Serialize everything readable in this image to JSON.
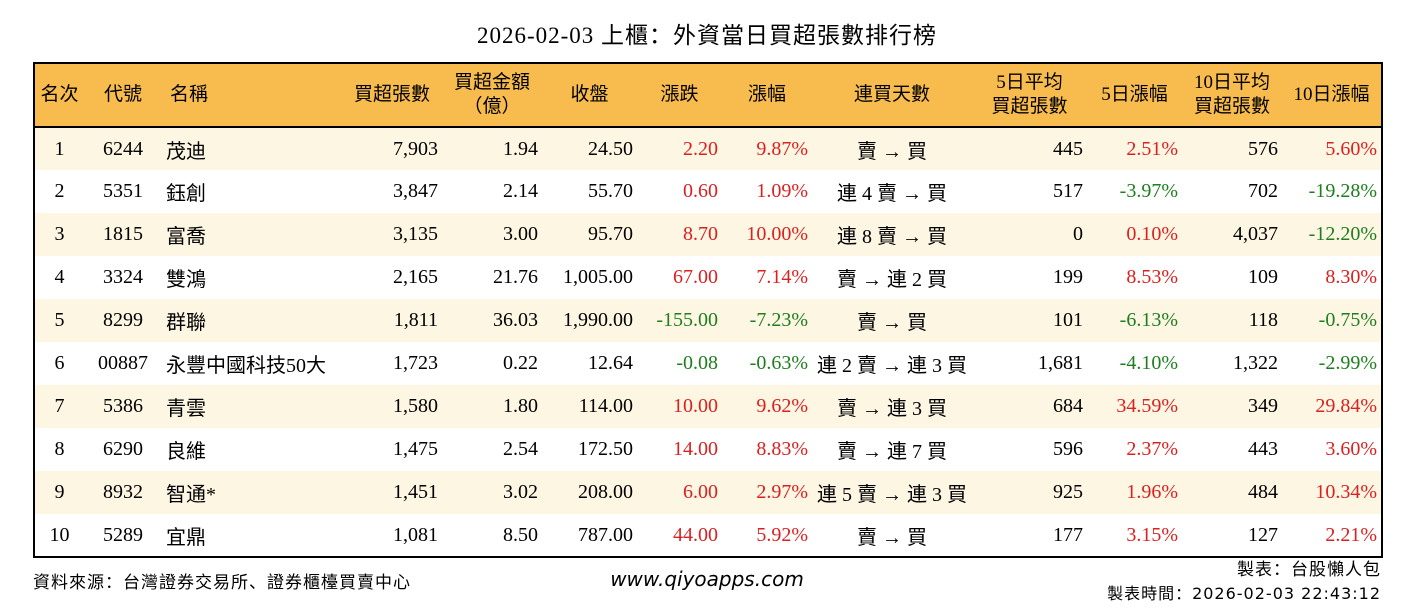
{
  "title": "2026-02-03 上櫃：外資當日買超張數排行榜",
  "colors": {
    "header_bg": "#F7BC4D",
    "row_alt_bg": "#FDF6E3",
    "up": "#D92121",
    "down": "#1E7E1E",
    "border": "#000000"
  },
  "chart_data": {
    "type": "table",
    "columns": [
      "名次",
      "代號",
      "名稱",
      "買超張數",
      "買超金額\n（億）",
      "收盤",
      "漲跌",
      "漲幅",
      "連買天數",
      "5日平均\n買超張數",
      "5日漲幅",
      "10日平均\n買超張數",
      "10日漲幅"
    ],
    "rows": [
      {
        "rank": "1",
        "code": "6244",
        "name": "茂迪",
        "net_buy": "7,903",
        "amount": "1.94",
        "close": "24.50",
        "change": "2.20",
        "change_c": "up",
        "pct": "9.87%",
        "pct_c": "up",
        "streak": "賣 → 買",
        "avg5": "445",
        "pct5": "2.51%",
        "pct5_c": "up",
        "avg10": "576",
        "pct10": "5.60%",
        "pct10_c": "up"
      },
      {
        "rank": "2",
        "code": "5351",
        "name": "鈺創",
        "net_buy": "3,847",
        "amount": "2.14",
        "close": "55.70",
        "change": "0.60",
        "change_c": "up",
        "pct": "1.09%",
        "pct_c": "up",
        "streak": "連 4 賣 → 買",
        "avg5": "517",
        "pct5": "-3.97%",
        "pct5_c": "down",
        "avg10": "702",
        "pct10": "-19.28%",
        "pct10_c": "down"
      },
      {
        "rank": "3",
        "code": "1815",
        "name": "富喬",
        "net_buy": "3,135",
        "amount": "3.00",
        "close": "95.70",
        "change": "8.70",
        "change_c": "up",
        "pct": "10.00%",
        "pct_c": "up",
        "streak": "連 8 賣 → 買",
        "avg5": "0",
        "pct5": "0.10%",
        "pct5_c": "up",
        "avg10": "4,037",
        "pct10": "-12.20%",
        "pct10_c": "down"
      },
      {
        "rank": "4",
        "code": "3324",
        "name": "雙鴻",
        "net_buy": "2,165",
        "amount": "21.76",
        "close": "1,005.00",
        "change": "67.00",
        "change_c": "up",
        "pct": "7.14%",
        "pct_c": "up",
        "streak": "賣 → 連 2 買",
        "avg5": "199",
        "pct5": "8.53%",
        "pct5_c": "up",
        "avg10": "109",
        "pct10": "8.30%",
        "pct10_c": "up"
      },
      {
        "rank": "5",
        "code": "8299",
        "name": "群聯",
        "net_buy": "1,811",
        "amount": "36.03",
        "close": "1,990.00",
        "change": "-155.00",
        "change_c": "down",
        "pct": "-7.23%",
        "pct_c": "down",
        "streak": "賣 → 買",
        "avg5": "101",
        "pct5": "-6.13%",
        "pct5_c": "down",
        "avg10": "118",
        "pct10": "-0.75%",
        "pct10_c": "down"
      },
      {
        "rank": "6",
        "code": "00887",
        "name": "永豐中國科技50大",
        "net_buy": "1,723",
        "amount": "0.22",
        "close": "12.64",
        "change": "-0.08",
        "change_c": "down",
        "pct": "-0.63%",
        "pct_c": "down",
        "streak": "連 2 賣 → 連 3 買",
        "avg5": "1,681",
        "pct5": "-4.10%",
        "pct5_c": "down",
        "avg10": "1,322",
        "pct10": "-2.99%",
        "pct10_c": "down"
      },
      {
        "rank": "7",
        "code": "5386",
        "name": "青雲",
        "net_buy": "1,580",
        "amount": "1.80",
        "close": "114.00",
        "change": "10.00",
        "change_c": "up",
        "pct": "9.62%",
        "pct_c": "up",
        "streak": "賣 → 連 3 買",
        "avg5": "684",
        "pct5": "34.59%",
        "pct5_c": "up",
        "avg10": "349",
        "pct10": "29.84%",
        "pct10_c": "up"
      },
      {
        "rank": "8",
        "code": "6290",
        "name": "良維",
        "net_buy": "1,475",
        "amount": "2.54",
        "close": "172.50",
        "change": "14.00",
        "change_c": "up",
        "pct": "8.83%",
        "pct_c": "up",
        "streak": "賣 → 連 7 買",
        "avg5": "596",
        "pct5": "2.37%",
        "pct5_c": "up",
        "avg10": "443",
        "pct10": "3.60%",
        "pct10_c": "up"
      },
      {
        "rank": "9",
        "code": "8932",
        "name": "智通*",
        "net_buy": "1,451",
        "amount": "3.02",
        "close": "208.00",
        "change": "6.00",
        "change_c": "up",
        "pct": "2.97%",
        "pct_c": "up",
        "streak": "連 5 賣 → 連 3 買",
        "avg5": "925",
        "pct5": "1.96%",
        "pct5_c": "up",
        "avg10": "484",
        "pct10": "10.34%",
        "pct10_c": "up"
      },
      {
        "rank": "10",
        "code": "5289",
        "name": "宜鼎",
        "net_buy": "1,081",
        "amount": "8.50",
        "close": "787.00",
        "change": "44.00",
        "change_c": "up",
        "pct": "5.92%",
        "pct_c": "up",
        "streak": "賣 → 買",
        "avg5": "177",
        "pct5": "3.15%",
        "pct5_c": "up",
        "avg10": "127",
        "pct10": "2.21%",
        "pct10_c": "up"
      }
    ]
  },
  "footer": {
    "source": "資料來源：台灣證券交易所、證券櫃檯買賣中心",
    "website": "www.qiyoapps.com",
    "maker": "製表：台股懶人包",
    "time": "製表時間：2026-02-03 22:43:12"
  }
}
